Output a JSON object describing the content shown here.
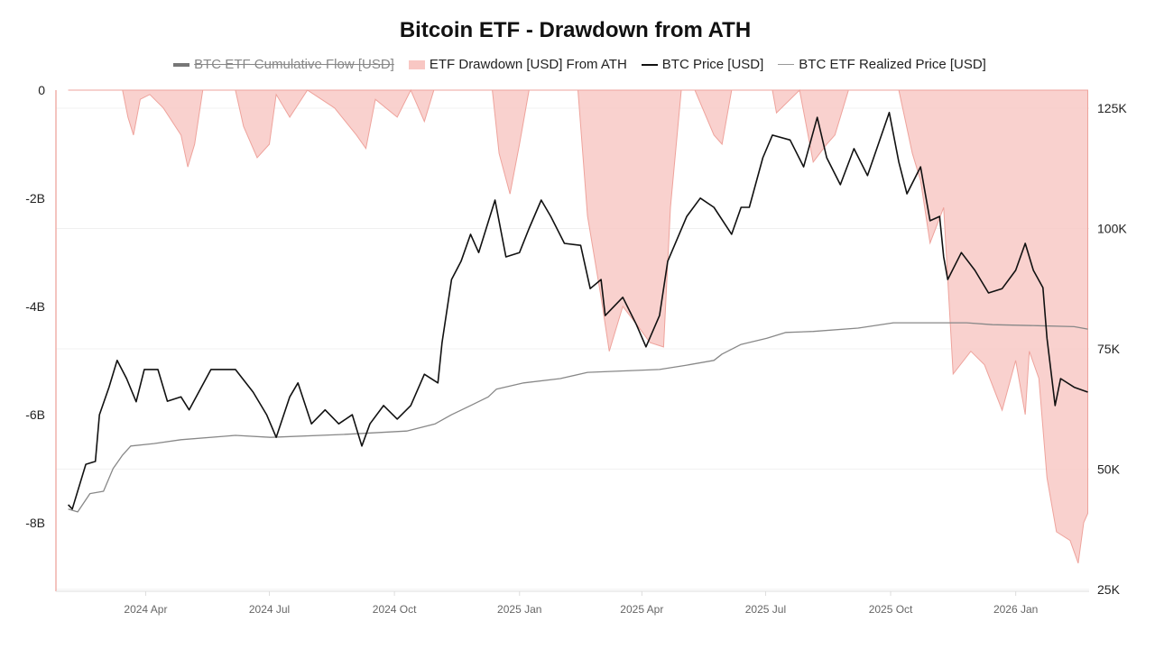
{
  "chart_data": {
    "type": "line",
    "title": "Bitcoin ETF - Drawdown from ATH",
    "legend": [
      {
        "name": "BTC ETF Cumulative Flow [USD]",
        "color": "#777777",
        "hidden": true
      },
      {
        "name": "ETF Drawdown [USD] From ATH",
        "color": "#f4a6a0",
        "hidden": false
      },
      {
        "name": "BTC Price [USD]",
        "color": "#111111",
        "hidden": false
      },
      {
        "name": "BTC ETF Realized Price [USD]",
        "color": "#888888",
        "hidden": false
      }
    ],
    "legend_placement": "top",
    "xlim": [
      "2024-01-26",
      "2026-02-24"
    ],
    "x_ticks": [
      {
        "date": "2024-04-01",
        "label": "2024 Apr"
      },
      {
        "date": "2024-07-01",
        "label": "2024 Jul"
      },
      {
        "date": "2024-10-01",
        "label": "2024 Oct"
      },
      {
        "date": "2025-01-01",
        "label": "2025 Jan"
      },
      {
        "date": "2025-04-01",
        "label": "2025 Apr"
      },
      {
        "date": "2025-07-01",
        "label": "2025 Jul"
      },
      {
        "date": "2025-10-01",
        "label": "2025 Oct"
      },
      {
        "date": "2026-01-01",
        "label": "2026 Jan"
      }
    ],
    "left_axis": {
      "unit": "USD (billions)",
      "ylim": [
        -9.27,
        0
      ],
      "ticks": [
        {
          "v": 0,
          "label": "0"
        },
        {
          "v": -2,
          "label": "-2B"
        },
        {
          "v": -4,
          "label": "-4B"
        },
        {
          "v": -6,
          "label": "-6B"
        },
        {
          "v": -8,
          "label": "-8B"
        }
      ]
    },
    "right_axis": {
      "unit": "USD (thousands)",
      "ylim": [
        24.6,
        128.75
      ],
      "ticks": [
        {
          "v": 125,
          "label": "125K"
        },
        {
          "v": 100,
          "label": "100K"
        },
        {
          "v": 75,
          "label": "75K"
        },
        {
          "v": 50,
          "label": "50K"
        },
        {
          "v": 25,
          "label": "25K"
        }
      ]
    },
    "grid": true,
    "series": [
      {
        "name": "ETF Drawdown [USD] From ATH",
        "type": "area",
        "axis": "left",
        "color": "#f4a6a0",
        "points": [
          [
            "2024-02-04",
            0
          ],
          [
            "2024-03-15",
            0
          ],
          [
            "2024-03-19",
            -0.5
          ],
          [
            "2024-03-23",
            -0.83
          ],
          [
            "2024-03-28",
            -0.17
          ],
          [
            "2024-04-04",
            -0.08
          ],
          [
            "2024-04-14",
            -0.33
          ],
          [
            "2024-04-27",
            -0.83
          ],
          [
            "2024-05-02",
            -1.42
          ],
          [
            "2024-05-07",
            -1.0
          ],
          [
            "2024-05-13",
            0
          ],
          [
            "2024-06-06",
            0
          ],
          [
            "2024-06-12",
            -0.67
          ],
          [
            "2024-06-22",
            -1.25
          ],
          [
            "2024-07-01",
            -1.0
          ],
          [
            "2024-07-06",
            -0.08
          ],
          [
            "2024-07-16",
            -0.5
          ],
          [
            "2024-07-29",
            0
          ],
          [
            "2024-08-18",
            -0.33
          ],
          [
            "2024-09-03",
            -0.83
          ],
          [
            "2024-09-10",
            -1.08
          ],
          [
            "2024-09-17",
            -0.17
          ],
          [
            "2024-10-03",
            -0.5
          ],
          [
            "2024-10-13",
            0
          ],
          [
            "2024-10-23",
            -0.58
          ],
          [
            "2024-10-30",
            0
          ],
          [
            "2024-12-12",
            0
          ],
          [
            "2024-12-17",
            -1.17
          ],
          [
            "2024-12-25",
            -1.92
          ],
          [
            "2025-01-01",
            -1.0
          ],
          [
            "2025-01-08",
            0
          ],
          [
            "2025-02-13",
            0
          ],
          [
            "2025-02-20",
            -2.33
          ],
          [
            "2025-03-02",
            -3.83
          ],
          [
            "2025-03-08",
            -4.83
          ],
          [
            "2025-03-18",
            -4.0
          ],
          [
            "2025-03-28",
            -4.33
          ],
          [
            "2025-04-07",
            -4.67
          ],
          [
            "2025-04-17",
            -4.75
          ],
          [
            "2025-04-22",
            -2.17
          ],
          [
            "2025-04-30",
            0
          ],
          [
            "2025-05-10",
            0
          ],
          [
            "2025-05-24",
            -0.83
          ],
          [
            "2025-05-30",
            -1.0
          ],
          [
            "2025-06-06",
            0
          ],
          [
            "2025-07-06",
            0
          ],
          [
            "2025-07-09",
            -0.42
          ],
          [
            "2025-07-26",
            0
          ],
          [
            "2025-08-05",
            -1.33
          ],
          [
            "2025-08-15",
            -1.0
          ],
          [
            "2025-08-21",
            -0.83
          ],
          [
            "2025-08-31",
            0
          ],
          [
            "2025-10-07",
            0
          ],
          [
            "2025-10-17",
            -1.17
          ],
          [
            "2025-10-23",
            -1.67
          ],
          [
            "2025-10-30",
            -2.83
          ],
          [
            "2025-11-09",
            -2.17
          ],
          [
            "2025-11-16",
            -5.25
          ],
          [
            "2025-11-29",
            -4.83
          ],
          [
            "2025-12-09",
            -5.08
          ],
          [
            "2025-12-22",
            -5.92
          ],
          [
            "2026-01-01",
            -5.0
          ],
          [
            "2026-01-08",
            -6.0
          ],
          [
            "2026-01-11",
            -4.83
          ],
          [
            "2026-01-18",
            -5.33
          ],
          [
            "2026-01-24",
            -7.17
          ],
          [
            "2026-01-31",
            -8.17
          ],
          [
            "2026-02-10",
            -8.33
          ],
          [
            "2026-02-16",
            -8.75
          ],
          [
            "2026-02-20",
            -8.0
          ],
          [
            "2026-02-23",
            -7.83
          ]
        ]
      },
      {
        "name": "BTC ETF Realized Price [USD]",
        "type": "line",
        "axis": "right",
        "color": "#888888",
        "points": [
          [
            "2024-02-04",
            41.7
          ],
          [
            "2024-02-11",
            41.1
          ],
          [
            "2024-02-20",
            44.9
          ],
          [
            "2024-03-01",
            45.4
          ],
          [
            "2024-03-08",
            50.1
          ],
          [
            "2024-03-15",
            52.9
          ],
          [
            "2024-03-21",
            54.8
          ],
          [
            "2024-04-07",
            55.3
          ],
          [
            "2024-04-27",
            56.1
          ],
          [
            "2024-06-06",
            57.0
          ],
          [
            "2024-07-02",
            56.6
          ],
          [
            "2024-08-24",
            57.2
          ],
          [
            "2024-10-10",
            57.9
          ],
          [
            "2024-10-31",
            59.4
          ],
          [
            "2024-11-12",
            61.3
          ],
          [
            "2024-11-26",
            63.2
          ],
          [
            "2024-12-09",
            65.0
          ],
          [
            "2024-12-15",
            66.6
          ],
          [
            "2025-01-04",
            67.9
          ],
          [
            "2025-01-31",
            68.8
          ],
          [
            "2025-02-20",
            70.1
          ],
          [
            "2025-04-14",
            70.7
          ],
          [
            "2025-05-04",
            71.6
          ],
          [
            "2025-05-24",
            72.6
          ],
          [
            "2025-05-30",
            73.9
          ],
          [
            "2025-06-13",
            75.9
          ],
          [
            "2025-07-02",
            77.2
          ],
          [
            "2025-07-16",
            78.4
          ],
          [
            "2025-08-05",
            78.6
          ],
          [
            "2025-09-07",
            79.3
          ],
          [
            "2025-10-03",
            80.4
          ],
          [
            "2025-11-26",
            80.4
          ],
          [
            "2025-12-15",
            80.0
          ],
          [
            "2026-01-17",
            79.8
          ],
          [
            "2026-02-13",
            79.6
          ],
          [
            "2026-02-23",
            79.1
          ]
        ]
      },
      {
        "name": "BTC Price [USD]",
        "type": "line",
        "axis": "right",
        "color": "#111111",
        "points": [
          [
            "2024-02-04",
            42.6
          ],
          [
            "2024-02-07",
            41.7
          ],
          [
            "2024-02-17",
            51.0
          ],
          [
            "2024-02-24",
            51.6
          ],
          [
            "2024-02-27",
            61.3
          ],
          [
            "2024-03-05",
            67.0
          ],
          [
            "2024-03-11",
            72.6
          ],
          [
            "2024-03-18",
            68.8
          ],
          [
            "2024-03-25",
            64.0
          ],
          [
            "2024-03-31",
            70.7
          ],
          [
            "2024-04-10",
            70.7
          ],
          [
            "2024-04-17",
            64.1
          ],
          [
            "2024-04-27",
            65.0
          ],
          [
            "2024-05-03",
            62.3
          ],
          [
            "2024-05-19",
            70.7
          ],
          [
            "2024-06-06",
            70.7
          ],
          [
            "2024-06-19",
            66.0
          ],
          [
            "2024-06-29",
            61.3
          ],
          [
            "2024-07-06",
            56.6
          ],
          [
            "2024-07-16",
            65.0
          ],
          [
            "2024-07-22",
            67.9
          ],
          [
            "2024-08-01",
            59.4
          ],
          [
            "2024-08-11",
            62.3
          ],
          [
            "2024-08-21",
            59.4
          ],
          [
            "2024-08-31",
            61.3
          ],
          [
            "2024-09-07",
            54.8
          ],
          [
            "2024-09-13",
            59.4
          ],
          [
            "2024-09-23",
            63.2
          ],
          [
            "2024-10-03",
            60.4
          ],
          [
            "2024-10-13",
            63.2
          ],
          [
            "2024-10-23",
            69.7
          ],
          [
            "2024-11-02",
            67.9
          ],
          [
            "2024-11-05",
            76.3
          ],
          [
            "2024-11-12",
            89.4
          ],
          [
            "2024-11-19",
            93.2
          ],
          [
            "2024-11-26",
            98.8
          ],
          [
            "2024-12-02",
            95.0
          ],
          [
            "2024-12-14",
            105.9
          ],
          [
            "2024-12-22",
            94.1
          ],
          [
            "2025-01-01",
            95.0
          ],
          [
            "2025-01-08",
            100.0
          ],
          [
            "2025-01-17",
            105.9
          ],
          [
            "2025-01-24",
            102.5
          ],
          [
            "2025-02-03",
            96.9
          ],
          [
            "2025-02-15",
            96.5
          ],
          [
            "2025-02-22",
            87.5
          ],
          [
            "2025-03-02",
            89.4
          ],
          [
            "2025-03-05",
            81.9
          ],
          [
            "2025-03-18",
            85.7
          ],
          [
            "2025-03-28",
            80.0
          ],
          [
            "2025-04-04",
            75.4
          ],
          [
            "2025-04-14",
            81.9
          ],
          [
            "2025-04-20",
            93.2
          ],
          [
            "2025-05-04",
            102.5
          ],
          [
            "2025-05-14",
            106.3
          ],
          [
            "2025-05-24",
            104.4
          ],
          [
            "2025-06-06",
            98.8
          ],
          [
            "2025-06-13",
            104.4
          ],
          [
            "2025-06-19",
            104.4
          ],
          [
            "2025-06-29",
            114.7
          ],
          [
            "2025-07-06",
            119.4
          ],
          [
            "2025-07-19",
            118.4
          ],
          [
            "2025-07-29",
            112.8
          ],
          [
            "2025-08-08",
            123.1
          ],
          [
            "2025-08-15",
            114.7
          ],
          [
            "2025-08-25",
            109.1
          ],
          [
            "2025-09-04",
            116.6
          ],
          [
            "2025-09-14",
            111.0
          ],
          [
            "2025-09-23",
            118.4
          ],
          [
            "2025-09-30",
            124.1
          ],
          [
            "2025-10-07",
            113.8
          ],
          [
            "2025-10-13",
            107.2
          ],
          [
            "2025-10-23",
            112.8
          ],
          [
            "2025-10-30",
            101.6
          ],
          [
            "2025-11-06",
            102.5
          ],
          [
            "2025-11-09",
            94.1
          ],
          [
            "2025-11-12",
            89.4
          ],
          [
            "2025-11-22",
            95.0
          ],
          [
            "2025-12-02",
            91.3
          ],
          [
            "2025-12-12",
            86.6
          ],
          [
            "2025-12-22",
            87.5
          ],
          [
            "2026-01-01",
            91.3
          ],
          [
            "2026-01-08",
            96.9
          ],
          [
            "2026-01-14",
            91.3
          ],
          [
            "2026-01-21",
            87.7
          ],
          [
            "2026-01-24",
            77.2
          ],
          [
            "2026-01-30",
            63.2
          ],
          [
            "2026-02-03",
            68.8
          ],
          [
            "2026-02-13",
            67.0
          ],
          [
            "2026-02-23",
            66.0
          ]
        ]
      }
    ]
  }
}
